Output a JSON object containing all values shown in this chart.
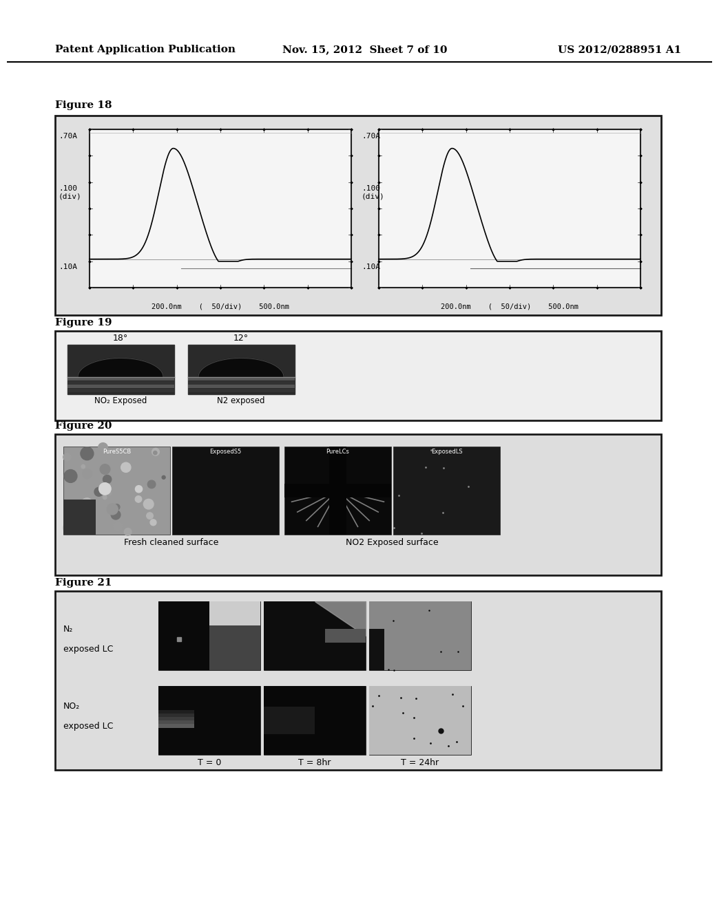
{
  "header_left": "Patent Application Publication",
  "header_mid": "Nov. 15, 2012  Sheet 7 of 10",
  "header_right": "US 2012/0288951 A1",
  "fig18_label": "Figure 18",
  "fig19_label": "Figure 19",
  "fig20_label": "Figure 20",
  "fig21_label": "Figure 21",
  "fig19_caption1": "NO₂ Exposed",
  "fig19_caption2": "N2 exposed",
  "fig19_angle1": "18°",
  "fig19_angle2": "12°",
  "fig20_caption1": "Fresh cleaned surface",
  "fig20_caption2": "NO2 Exposed surface",
  "fig21_row1_line1": "N₂",
  "fig21_row1_line2": "exposed LC",
  "fig21_row2_line1": "NO₂",
  "fig21_row2_line2": "exposed LC",
  "fig21_t0": "T = 0",
  "fig21_t8": "T = 8hr",
  "fig21_t24": "T = 24hr",
  "page_bg": "#ffffff",
  "fig_border": "#1a1a1a",
  "fig_bg": "#e8e8e8",
  "spectrum_bg": "#f0f0f0",
  "dark_panel": "#111111",
  "mid_gray": "#888888"
}
